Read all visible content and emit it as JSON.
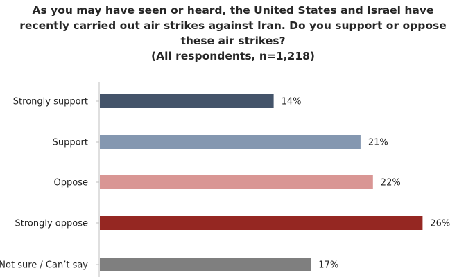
{
  "chart_data": {
    "type": "bar",
    "orientation": "horizontal",
    "title_lines": [
      "As you may have seen or heard, the United States and Israel have",
      "recently carried out air strikes against Iran. Do you support or oppose",
      "these air strikes?",
      "(All respondents, n=1,218)"
    ],
    "categories": [
      "Strongly support",
      "Support",
      "Oppose",
      "Strongly oppose",
      "Not sure / Can’t say"
    ],
    "values": [
      14,
      21,
      22,
      26,
      17
    ],
    "value_labels": [
      "14%",
      "21%",
      "22%",
      "26%",
      "17%"
    ],
    "colors": [
      "#44546a",
      "#8497b0",
      "#d99694",
      "#952722",
      "#7f7f7f"
    ],
    "unit": "%",
    "xlim": [
      0,
      30
    ],
    "grid": false,
    "legend": "none"
  }
}
